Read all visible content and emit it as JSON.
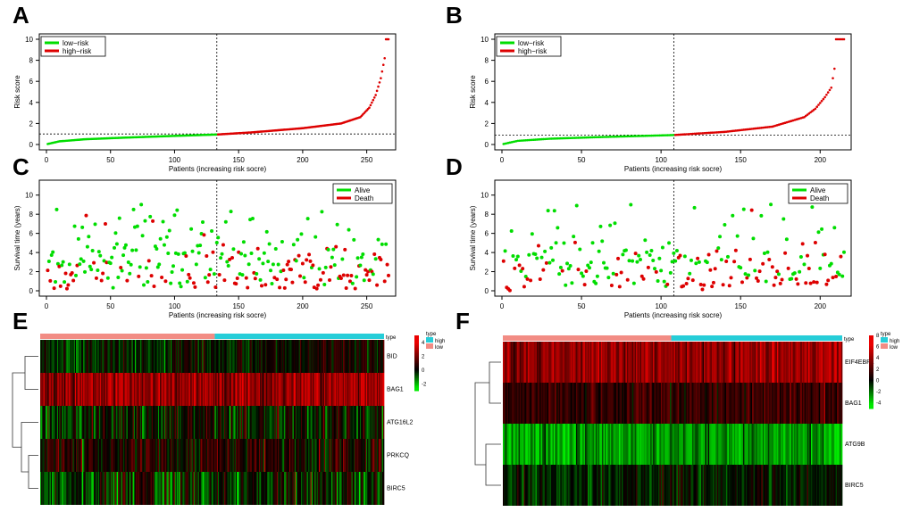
{
  "panel_labels": [
    "A",
    "B",
    "C",
    "D",
    "E",
    "F"
  ],
  "colors": {
    "low": "#00dd00",
    "high": "#dd0000",
    "alive": "#00dd00",
    "death": "#dd0000",
    "hm_high": "#ff0000",
    "hm_mid": "#000000",
    "hm_low": "#00ff00",
    "type_high": "#26cdd8",
    "type_low": "#f28c84"
  },
  "chart_data": [
    {
      "panel": "A",
      "type": "scatter",
      "subtype": "risk-score-curve",
      "n": 267,
      "cutoff_index": 133,
      "cutoff_score": 1.0,
      "xlabel": "Patients (increasing risk socre)",
      "ylabel": "Risk score",
      "xticks": [
        0,
        50,
        100,
        150,
        200,
        250
      ],
      "yticks": [
        0,
        2,
        4,
        6,
        8,
        10
      ],
      "xlim": [
        0,
        267
      ],
      "ylim": [
        0,
        10
      ],
      "legend": [
        "low−risk",
        "high−risk"
      ],
      "curve_knots": [
        [
          1,
          0.05
        ],
        [
          10,
          0.3
        ],
        [
          30,
          0.5
        ],
        [
          60,
          0.65
        ],
        [
          100,
          0.82
        ],
        [
          133,
          0.95
        ],
        [
          160,
          1.15
        ],
        [
          200,
          1.55
        ],
        [
          230,
          2.0
        ],
        [
          245,
          2.6
        ],
        [
          252,
          3.5
        ],
        [
          257,
          4.7
        ],
        [
          261,
          6.3
        ],
        [
          264,
          8.2
        ],
        [
          265,
          10
        ],
        [
          267,
          10
        ]
      ]
    },
    {
      "panel": "B",
      "type": "scatter",
      "subtype": "risk-score-curve",
      "n": 215,
      "cutoff_index": 108,
      "cutoff_score": 0.9,
      "xlabel": "Patients (increasing risk socre)",
      "ylabel": "Risk score",
      "xticks": [
        0,
        50,
        100,
        150,
        200
      ],
      "yticks": [
        0,
        2,
        4,
        6,
        8,
        10
      ],
      "xlim": [
        0,
        215
      ],
      "ylim": [
        0,
        10
      ],
      "legend": [
        "low−risk",
        "high−risk"
      ],
      "curve_knots": [
        [
          1,
          0.05
        ],
        [
          10,
          0.35
        ],
        [
          30,
          0.55
        ],
        [
          60,
          0.7
        ],
        [
          108,
          0.9
        ],
        [
          140,
          1.2
        ],
        [
          170,
          1.7
        ],
        [
          190,
          2.6
        ],
        [
          197,
          3.4
        ],
        [
          203,
          4.5
        ],
        [
          207,
          5.4
        ],
        [
          209,
          7.2
        ],
        [
          210,
          10
        ],
        [
          215,
          10
        ]
      ]
    },
    {
      "panel": "C",
      "type": "scatter",
      "subtype": "survival-status",
      "n": 267,
      "cutoff_index": 133,
      "xlabel": "Patients (increasing risk socre)",
      "ylabel": "Survival time (years)",
      "xticks": [
        0,
        50,
        100,
        150,
        200,
        250
      ],
      "yticks": [
        0,
        2,
        4,
        6,
        8,
        10
      ],
      "xlim": [
        0,
        267
      ],
      "ylim": [
        0,
        11
      ],
      "legend": [
        "Alive",
        "Death"
      ],
      "death_rate_low": 0.3,
      "death_rate_high": 0.55,
      "seed": 11
    },
    {
      "panel": "D",
      "type": "scatter",
      "subtype": "survival-status",
      "n": 215,
      "cutoff_index": 108,
      "xlabel": "Patients (increasing risk socre)",
      "ylabel": "Survival time (years)",
      "xticks": [
        0,
        50,
        100,
        150,
        200
      ],
      "yticks": [
        0,
        2,
        4,
        6,
        8,
        10
      ],
      "xlim": [
        0,
        215
      ],
      "ylim": [
        0,
        11
      ],
      "legend": [
        "Alive",
        "Death"
      ],
      "death_rate_low": 0.25,
      "death_rate_high": 0.5,
      "seed": 23
    },
    {
      "panel": "E",
      "type": "heatmap",
      "genes": [
        "BID",
        "BAG1",
        "ATG16L2",
        "PRKCQ",
        "BIRC5"
      ],
      "gene_means": [
        0.0,
        2.6,
        -0.2,
        0.5,
        -0.4
      ],
      "gene_sds": [
        0.7,
        0.9,
        1.0,
        0.9,
        1.1
      ],
      "type_label": "type",
      "type_legend": [
        "high",
        "low"
      ],
      "scale_ticks": [
        4,
        2,
        0,
        -2
      ],
      "scale_range": [
        -3,
        5
      ],
      "n_low": 166,
      "n_high": 161,
      "seed": 5
    },
    {
      "panel": "F",
      "type": "heatmap",
      "genes": [
        "EIF4EBP1",
        "BAG1",
        "ATG9B",
        "BIRC5"
      ],
      "gene_means": [
        4.0,
        1.5,
        -3.0,
        -0.4
      ],
      "gene_sds": [
        1.2,
        1.0,
        1.1,
        0.9
      ],
      "type_label": "type",
      "type_legend": [
        "high",
        "low"
      ],
      "scale_ticks": [
        8,
        6,
        4,
        2,
        0,
        -2,
        -4
      ],
      "scale_range": [
        -5,
        8
      ],
      "n_low": 129,
      "n_high": 131,
      "seed": 9
    }
  ]
}
